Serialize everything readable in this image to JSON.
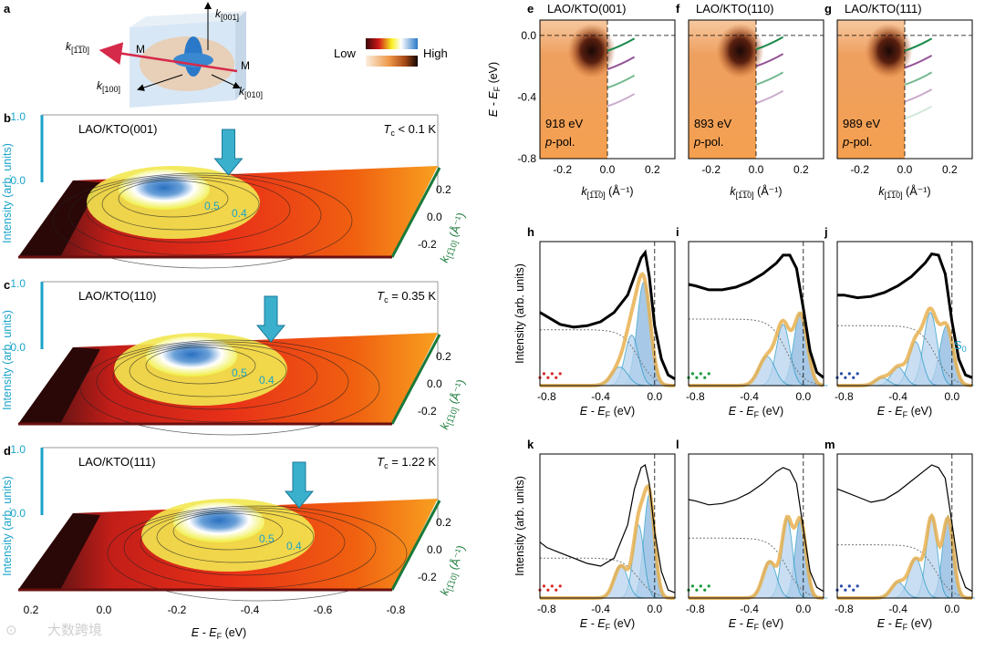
{
  "figure": {
    "watermark": "大数跨境",
    "colorbar": {
      "low": "Low",
      "high": "High"
    },
    "schematic": {
      "panel": "a",
      "axes": [
        "[001]",
        "[1̅1̅0]",
        "[100]",
        "[010]"
      ],
      "k_letter": "k",
      "point": "M"
    }
  },
  "chart_data": [
    {
      "type": "surface3d",
      "panel": "b",
      "sample": "LAO/KTO(001)",
      "tc": "< 0.1 K",
      "zlabel": "Intensity (arb. units)",
      "zticks": [
        "1.0",
        "0.0"
      ],
      "xlabel": "E - E",
      "xlabel_sub": "F",
      "xunit": " (eV)",
      "xticks": [
        "0.2",
        "0.0",
        "-0.2",
        "-0.4",
        "-0.6",
        "-0.8"
      ],
      "ylabel": "k",
      "ylabel_sub": "[1̅10]",
      "yunit": " (Å⁻¹)",
      "yticks": [
        "0.2",
        "0.0",
        "-0.2"
      ],
      "contours": [
        "0.5",
        "0.4"
      ],
      "arrow_energy": -0.35,
      "peak": {
        "energy": -0.15,
        "k": 0.05
      }
    },
    {
      "type": "surface3d",
      "panel": "c",
      "sample": "LAO/KTO(110)",
      "tc": "= 0.35 K",
      "zlabel": "Intensity (arb. units)",
      "zticks": [
        "1.0",
        "0.0"
      ],
      "ylabel": "k",
      "ylabel_sub": "[1̅10]",
      "yunit": " (Å⁻¹)",
      "yticks": [
        "0.2",
        "0.0",
        "-0.2"
      ],
      "contours": [
        "0.5",
        "0.4"
      ],
      "arrow_energy": -0.5,
      "peak": {
        "energy": -0.2,
        "k": 0.05
      }
    },
    {
      "type": "surface3d",
      "panel": "d",
      "sample": "LAO/KTO(111)",
      "tc": "= 1.22 K",
      "zlabel": "Intensity (arb. units)",
      "zticks": [
        "1.0",
        "0.0"
      ],
      "ylabel": "k",
      "ylabel_sub": "[1̅10]",
      "yunit": " (Å⁻¹)",
      "yticks": [
        "0.2",
        "0.0",
        "-0.2"
      ],
      "contours": [
        "0.5",
        "0.4"
      ],
      "arrow_energy": -0.6,
      "peak": {
        "energy": -0.3,
        "k": 0.05
      }
    },
    {
      "type": "heatmap",
      "panel": "e",
      "sample": "LAO/KTO(001)",
      "photon": "918 eV",
      "pol": "p-pol.",
      "ylabel": "E - E",
      "ylabel_sub": "F",
      "yunit": " (eV)",
      "yticks": [
        "0.0",
        "-0.4",
        "-0.8"
      ],
      "xlabel": "k",
      "xlabel_sub": "[1̅1̅0]",
      "xunit": " (Å⁻¹)",
      "xticks": [
        "-0.2",
        "0.0",
        "0.2"
      ],
      "xlim": [
        -0.3,
        0.3
      ],
      "ylim": [
        -0.8,
        0.1
      ],
      "bands_k": [
        0,
        0.12
      ],
      "band_energies": [
        -0.05,
        -0.17,
        -0.29,
        -0.41
      ]
    },
    {
      "type": "heatmap",
      "panel": "f",
      "sample": "LAO/KTO(110)",
      "photon": "893 eV",
      "pol": "p-pol.",
      "xlabel": "k",
      "xlabel_sub": "[1̅1̅0]",
      "xunit": " (Å⁻¹)",
      "xticks": [
        "-0.2",
        "0.0",
        "0.2"
      ],
      "xlim": [
        -0.3,
        0.3
      ],
      "ylim": [
        -0.8,
        0.1
      ],
      "band_energies": [
        -0.04,
        -0.15,
        -0.27,
        -0.39
      ]
    },
    {
      "type": "heatmap",
      "panel": "g",
      "sample": "LAO/KTO(111)",
      "photon": "989 eV",
      "pol": "p-pol.",
      "xlabel": "k",
      "xlabel_sub": "[1̅1̅0]",
      "xunit": " (Å⁻¹)",
      "xticks": [
        "-0.2",
        "0.0",
        "0.2"
      ],
      "xlim": [
        -0.3,
        0.3
      ],
      "ylim": [
        -0.8,
        0.1
      ],
      "band_energies": [
        -0.05,
        -0.16,
        -0.27,
        -0.38,
        -0.49
      ]
    },
    {
      "type": "line",
      "panel": "h",
      "xlim": [
        -0.85,
        0.15
      ],
      "xticks": [
        "-0.8",
        "-0.4",
        "0.0"
      ],
      "xlabel": "E - E",
      "xlabel_sub": "F",
      "xunit": " (eV)",
      "ylabel": "Intensity (arb. units)",
      "data_x": [
        -0.85,
        -0.8,
        -0.7,
        -0.6,
        -0.5,
        -0.4,
        -0.3,
        -0.2,
        -0.15,
        -0.1,
        -0.07,
        -0.04,
        0,
        0.05,
        0.1,
        0.15
      ],
      "data_y": [
        0.55,
        0.52,
        0.46,
        0.44,
        0.45,
        0.48,
        0.55,
        0.68,
        0.82,
        0.96,
        1.0,
        0.82,
        0.45,
        0.2,
        0.08,
        0.05
      ],
      "peaks_center": [
        -0.08,
        -0.17,
        -0.26
      ],
      "peaks_amp": [
        0.78,
        0.38,
        0.14
      ],
      "peaks_width": [
        0.05,
        0.05,
        0.06
      ],
      "background_amp": 0.42,
      "dot_color": "#d62a2a"
    },
    {
      "type": "line",
      "panel": "i",
      "xlim": [
        -0.85,
        0.15
      ],
      "xticks": [
        "-0.8",
        "-0.4",
        "0.0"
      ],
      "xlabel": "E - E",
      "xlabel_sub": "F",
      "xunit": " (eV)",
      "data_x": [
        -0.85,
        -0.8,
        -0.7,
        -0.6,
        -0.5,
        -0.4,
        -0.3,
        -0.2,
        -0.15,
        -0.1,
        -0.05,
        0,
        0.05,
        0.1,
        0.15
      ],
      "data_y": [
        0.76,
        0.75,
        0.72,
        0.72,
        0.74,
        0.78,
        0.84,
        0.92,
        0.98,
        0.98,
        0.88,
        0.58,
        0.26,
        0.1,
        0.06
      ],
      "peaks_center": [
        -0.02,
        -0.15,
        -0.27
      ],
      "peaks_amp": [
        0.55,
        0.46,
        0.22
      ],
      "peaks_width": [
        0.05,
        0.05,
        0.06
      ],
      "background_amp": 0.5,
      "dot_color": "#1a9a3a"
    },
    {
      "type": "line",
      "panel": "j",
      "xlim": [
        -0.85,
        0.15
      ],
      "xticks": [
        "-0.8",
        "-0.4",
        "0.0"
      ],
      "xlabel": "E - E",
      "xlabel_sub": "F",
      "xunit": " (eV)",
      "s0_label": "S",
      "s0_sub": "0",
      "data_x": [
        -0.85,
        -0.8,
        -0.7,
        -0.6,
        -0.5,
        -0.4,
        -0.3,
        -0.2,
        -0.15,
        -0.1,
        -0.05,
        0,
        0.05,
        0.1,
        0.15
      ],
      "data_y": [
        0.68,
        0.68,
        0.66,
        0.67,
        0.7,
        0.75,
        0.82,
        0.92,
        0.99,
        0.98,
        0.84,
        0.48,
        0.2,
        0.08,
        0.06
      ],
      "peaks_center": [
        -0.04,
        -0.16,
        -0.27,
        -0.4,
        -0.52
      ],
      "peaks_amp": [
        0.45,
        0.55,
        0.33,
        0.14,
        0.06
      ],
      "peaks_width": [
        0.05,
        0.05,
        0.05,
        0.05,
        0.05
      ],
      "background_amp": 0.45,
      "dot_color": "#2a4aa8"
    },
    {
      "type": "line",
      "panel": "k",
      "xlim": [
        -0.85,
        0.15
      ],
      "xticks": [
        "-0.8",
        "-0.4",
        "0.0"
      ],
      "xlabel": "E - E",
      "xlabel_sub": "F",
      "xunit": " (eV)",
      "ylabel": "Intensity (arb. units)",
      "data_x": [
        -0.85,
        -0.8,
        -0.7,
        -0.6,
        -0.5,
        -0.4,
        -0.3,
        -0.2,
        -0.15,
        -0.1,
        -0.07,
        -0.04,
        0,
        0.05,
        0.1,
        0.15
      ],
      "data_y": [
        0.42,
        0.38,
        0.34,
        0.3,
        0.26,
        0.24,
        0.3,
        0.55,
        0.82,
        0.98,
        1.0,
        0.86,
        0.5,
        0.2,
        0.06,
        0.04
      ],
      "peaks_center": [
        -0.04,
        -0.12,
        -0.25
      ],
      "peaks_amp": [
        0.78,
        0.55,
        0.25
      ],
      "peaks_width": [
        0.04,
        0.04,
        0.05
      ],
      "background_amp": 0.3,
      "dot_color": "#d62a2a"
    },
    {
      "type": "line",
      "panel": "l",
      "xlim": [
        -0.85,
        0.15
      ],
      "xticks": [
        "-0.8",
        "-0.4",
        "0.0"
      ],
      "xlabel": "E - E",
      "xlabel_sub": "F",
      "xunit": " (eV)",
      "data_x": [
        -0.85,
        -0.8,
        -0.7,
        -0.6,
        -0.5,
        -0.4,
        -0.3,
        -0.2,
        -0.15,
        -0.1,
        -0.05,
        0,
        0.05,
        0.1,
        0.15
      ],
      "data_y": [
        0.74,
        0.73,
        0.7,
        0.71,
        0.74,
        0.79,
        0.86,
        0.95,
        0.98,
        0.96,
        0.86,
        0.52,
        0.2,
        0.08,
        0.05
      ],
      "peaks_center": [
        -0.02,
        -0.12,
        -0.25
      ],
      "peaks_amp": [
        0.6,
        0.6,
        0.28
      ],
      "peaks_width": [
        0.04,
        0.04,
        0.05
      ],
      "background_amp": 0.45,
      "dot_color": "#1a9a3a"
    },
    {
      "type": "line",
      "panel": "m",
      "xlim": [
        -0.85,
        0.15
      ],
      "xticks": [
        "-0.8",
        "-0.4",
        "0.0"
      ],
      "xlabel": "E - E",
      "xlabel_sub": "F",
      "xunit": " (eV)",
      "data_x": [
        -0.85,
        -0.8,
        -0.7,
        -0.6,
        -0.5,
        -0.4,
        -0.3,
        -0.2,
        -0.15,
        -0.1,
        -0.05,
        0,
        0.05,
        0.1,
        0.15
      ],
      "data_y": [
        0.82,
        0.8,
        0.76,
        0.72,
        0.74,
        0.8,
        0.88,
        0.96,
        1.0,
        0.98,
        0.9,
        0.56,
        0.22,
        0.08,
        0.05
      ],
      "peaks_center": [
        -0.03,
        -0.15,
        -0.27,
        -0.4
      ],
      "peaks_amp": [
        0.62,
        0.62,
        0.3,
        0.12
      ],
      "peaks_width": [
        0.04,
        0.04,
        0.05,
        0.05
      ],
      "background_amp": 0.4,
      "dot_color": "#2a4aa8"
    }
  ]
}
